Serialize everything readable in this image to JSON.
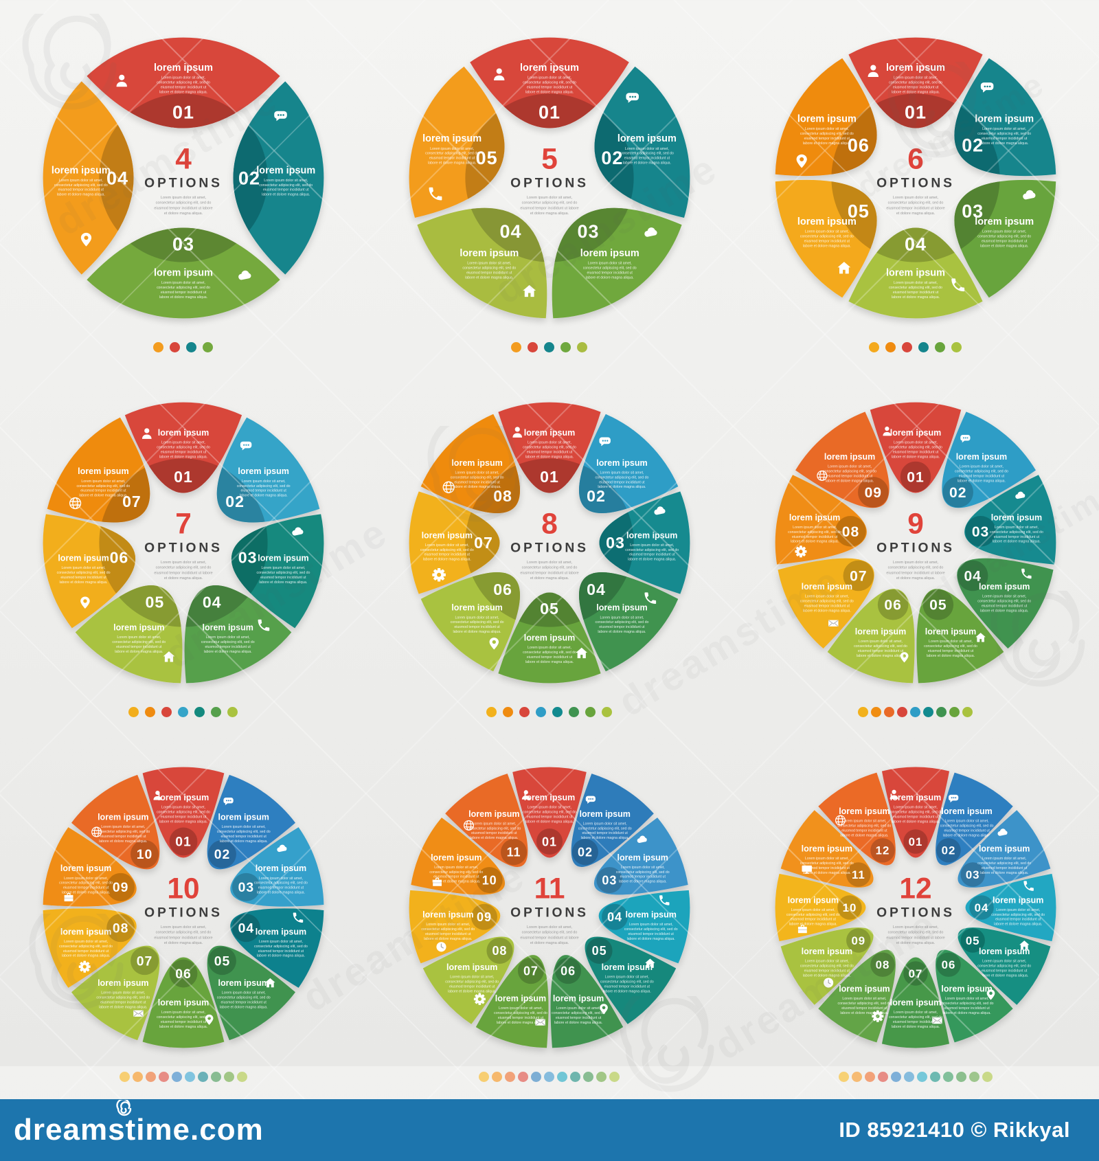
{
  "page": {
    "background_top": "#f4f4f2",
    "background_bottom": "#e7e7e5",
    "accent_red": "#e0433a",
    "options_word_color": "#3d3d3d",
    "watermark_word": "dreamstime"
  },
  "center_label": {
    "options_word": "OPTIONS",
    "description_lines": [
      "Lorem ipsum dolor sit amet,",
      "consectetur adipiscing elit, sed do",
      "eiusmod tempor incididunt ut labore",
      "et dolore magna aliqua."
    ]
  },
  "segment_text": {
    "title": "lorem ipsum",
    "description_lines": [
      "Lorem ipsum dolor sit amet,",
      "consectetur adipiscing elit, sed do",
      "eiusmod tempor incididunt ut",
      "labore et dolore magna aliqua."
    ]
  },
  "charts": [
    {
      "options_count": 4,
      "number_label": "4",
      "segments": [
        {
          "num": "01",
          "color": "#d8463b",
          "icon": "person"
        },
        {
          "num": "02",
          "color": "#15858c",
          "icon": "chat"
        },
        {
          "num": "03",
          "color": "#74a93e",
          "icon": "cloud"
        },
        {
          "num": "04",
          "color": "#f39c1f",
          "icon": "pin"
        }
      ],
      "dots": [
        "#f39c1f",
        "#d8463b",
        "#15858c",
        "#74a93e"
      ]
    },
    {
      "options_count": 5,
      "number_label": "5",
      "segments": [
        {
          "num": "01",
          "color": "#d8463b",
          "icon": "person"
        },
        {
          "num": "02",
          "color": "#15858c",
          "icon": "chat"
        },
        {
          "num": "03",
          "color": "#6fa83e",
          "icon": "cloud"
        },
        {
          "num": "04",
          "color": "#a9bc41",
          "icon": "home"
        },
        {
          "num": "05",
          "color": "#f39c1f",
          "icon": "phone"
        }
      ],
      "dots": [
        "#f39c1f",
        "#d8463b",
        "#15858c",
        "#6fa83e",
        "#a9bc41"
      ]
    },
    {
      "options_count": 6,
      "number_label": "6",
      "segments": [
        {
          "num": "01",
          "color": "#d8463b",
          "icon": "person"
        },
        {
          "num": "02",
          "color": "#15858c",
          "icon": "chat"
        },
        {
          "num": "03",
          "color": "#68a43c",
          "icon": "cloud"
        },
        {
          "num": "04",
          "color": "#a9c23f",
          "icon": "phone"
        },
        {
          "num": "05",
          "color": "#f4a91d",
          "icon": "home"
        },
        {
          "num": "06",
          "color": "#ef8b10",
          "icon": "pin"
        }
      ],
      "dots": [
        "#f4a91d",
        "#ef8b10",
        "#d8463b",
        "#15858c",
        "#68a43c",
        "#a9c23f"
      ]
    },
    {
      "options_count": 7,
      "number_label": "7",
      "segments": [
        {
          "num": "01",
          "color": "#d8463b",
          "icon": "person"
        },
        {
          "num": "02",
          "color": "#35a4c8",
          "icon": "chat"
        },
        {
          "num": "03",
          "color": "#14897e",
          "icon": "cloud"
        },
        {
          "num": "04",
          "color": "#56a04c",
          "icon": "phone"
        },
        {
          "num": "05",
          "color": "#a9c23f",
          "icon": "home"
        },
        {
          "num": "06",
          "color": "#f2ae1c",
          "icon": "pin"
        },
        {
          "num": "07",
          "color": "#ef8b10",
          "icon": "globe"
        }
      ],
      "dots": [
        "#f2ae1c",
        "#ef8b10",
        "#d8463b",
        "#35a4c8",
        "#14897e",
        "#56a04c",
        "#a9c23f"
      ]
    },
    {
      "options_count": 8,
      "number_label": "8",
      "segments": [
        {
          "num": "01",
          "color": "#d8463b",
          "icon": "person"
        },
        {
          "num": "02",
          "color": "#2f9dc6",
          "icon": "chat"
        },
        {
          "num": "03",
          "color": "#128a8f",
          "icon": "cloud"
        },
        {
          "num": "04",
          "color": "#3f9350",
          "icon": "phone"
        },
        {
          "num": "05",
          "color": "#68a43c",
          "icon": "home"
        },
        {
          "num": "06",
          "color": "#a9c23f",
          "icon": "pin"
        },
        {
          "num": "07",
          "color": "#f2b11c",
          "icon": "gear"
        },
        {
          "num": "08",
          "color": "#ef8b10",
          "icon": "globe"
        }
      ],
      "dots": [
        "#f2b11c",
        "#ef8b10",
        "#d8463b",
        "#2f9dc6",
        "#128a8f",
        "#3f9350",
        "#68a43c",
        "#a9c23f"
      ]
    },
    {
      "options_count": 9,
      "number_label": "9",
      "segments": [
        {
          "num": "01",
          "color": "#d8463b",
          "icon": "person"
        },
        {
          "num": "02",
          "color": "#2f9dc6",
          "icon": "chat"
        },
        {
          "num": "03",
          "color": "#128a8f",
          "icon": "cloud"
        },
        {
          "num": "04",
          "color": "#3f9350",
          "icon": "phone"
        },
        {
          "num": "05",
          "color": "#68a43c",
          "icon": "home"
        },
        {
          "num": "06",
          "color": "#a9c23f",
          "icon": "pin"
        },
        {
          "num": "07",
          "color": "#f2b11c",
          "icon": "mail"
        },
        {
          "num": "08",
          "color": "#f08d12",
          "icon": "gear"
        },
        {
          "num": "09",
          "color": "#e96a27",
          "icon": "globe"
        }
      ],
      "dots": [
        "#f2b11c",
        "#f08d12",
        "#e96a27",
        "#d8463b",
        "#2f9dc6",
        "#128a8f",
        "#3f9350",
        "#68a43c",
        "#a9c23f"
      ]
    },
    {
      "options_count": 10,
      "number_label": "10",
      "segments": [
        {
          "num": "01",
          "color": "#d8463b",
          "icon": "person"
        },
        {
          "num": "02",
          "color": "#2f7fc0",
          "icon": "chat"
        },
        {
          "num": "03",
          "color": "#35a0cb",
          "icon": "cloud"
        },
        {
          "num": "04",
          "color": "#11818d",
          "icon": "phone"
        },
        {
          "num": "05",
          "color": "#3f9350",
          "icon": "home"
        },
        {
          "num": "06",
          "color": "#68a43c",
          "icon": "pin"
        },
        {
          "num": "07",
          "color": "#a9c23f",
          "icon": "mail"
        },
        {
          "num": "08",
          "color": "#f2b11c",
          "icon": "gear"
        },
        {
          "num": "09",
          "color": "#f08d12",
          "icon": "briefcase"
        },
        {
          "num": "10",
          "color": "#e96a27",
          "icon": "globe"
        }
      ],
      "dots": [
        "#f2b11c",
        "#f08d12",
        "#e96a27",
        "#d8463b",
        "#2f7fc0",
        "#35a0cb",
        "#11818d",
        "#3f9350",
        "#68a43c",
        "#a9c23f"
      ]
    },
    {
      "options_count": 11,
      "number_label": "11",
      "segments": [
        {
          "num": "01",
          "color": "#d8463b",
          "icon": "person"
        },
        {
          "num": "02",
          "color": "#2e7cba",
          "icon": "chat"
        },
        {
          "num": "03",
          "color": "#3d93c9",
          "icon": "cloud"
        },
        {
          "num": "04",
          "color": "#1ba4bc",
          "icon": "phone"
        },
        {
          "num": "05",
          "color": "#16887b",
          "icon": "home"
        },
        {
          "num": "06",
          "color": "#3f9350",
          "icon": "pin"
        },
        {
          "num": "07",
          "color": "#68a43c",
          "icon": "mail"
        },
        {
          "num": "08",
          "color": "#a9c23f",
          "icon": "gear"
        },
        {
          "num": "09",
          "color": "#f2b11c",
          "icon": "clock"
        },
        {
          "num": "10",
          "color": "#f08d12",
          "icon": "briefcase"
        },
        {
          "num": "11",
          "color": "#e96a27",
          "icon": "globe"
        }
      ],
      "dots": [
        "#f2b11c",
        "#f08d12",
        "#e96a27",
        "#d8463b",
        "#2e7cba",
        "#3d93c9",
        "#1ba4bc",
        "#16887b",
        "#3f9350",
        "#68a43c",
        "#a9c23f"
      ]
    },
    {
      "options_count": 12,
      "number_label": "12",
      "segments": [
        {
          "num": "01",
          "color": "#d8463b",
          "icon": "person"
        },
        {
          "num": "02",
          "color": "#2f7fc0",
          "icon": "chat"
        },
        {
          "num": "03",
          "color": "#3d93c9",
          "icon": "cloud"
        },
        {
          "num": "04",
          "color": "#23a7c2",
          "icon": "phone"
        },
        {
          "num": "05",
          "color": "#148f82",
          "icon": "home"
        },
        {
          "num": "06",
          "color": "#35985c",
          "icon": "pin"
        },
        {
          "num": "07",
          "color": "#46984a",
          "icon": "mail"
        },
        {
          "num": "08",
          "color": "#63a447",
          "icon": "gear"
        },
        {
          "num": "09",
          "color": "#a9c23f",
          "icon": "clock"
        },
        {
          "num": "10",
          "color": "#f3b51f",
          "icon": "briefcase"
        },
        {
          "num": "11",
          "color": "#f1911d",
          "icon": "monitor"
        },
        {
          "num": "12",
          "color": "#eb6a28",
          "icon": "globe"
        }
      ],
      "dots": [
        "#f3b51f",
        "#f1911d",
        "#eb6a28",
        "#d8463b",
        "#2f7fc0",
        "#3d93c9",
        "#23a7c2",
        "#148f82",
        "#35985c",
        "#46984a",
        "#63a447",
        "#a9c23f"
      ]
    }
  ],
  "footer": {
    "background": "#1d75ad",
    "brand": "dreamstime.com",
    "credit": "ID 85921410 © Rikkyal"
  }
}
